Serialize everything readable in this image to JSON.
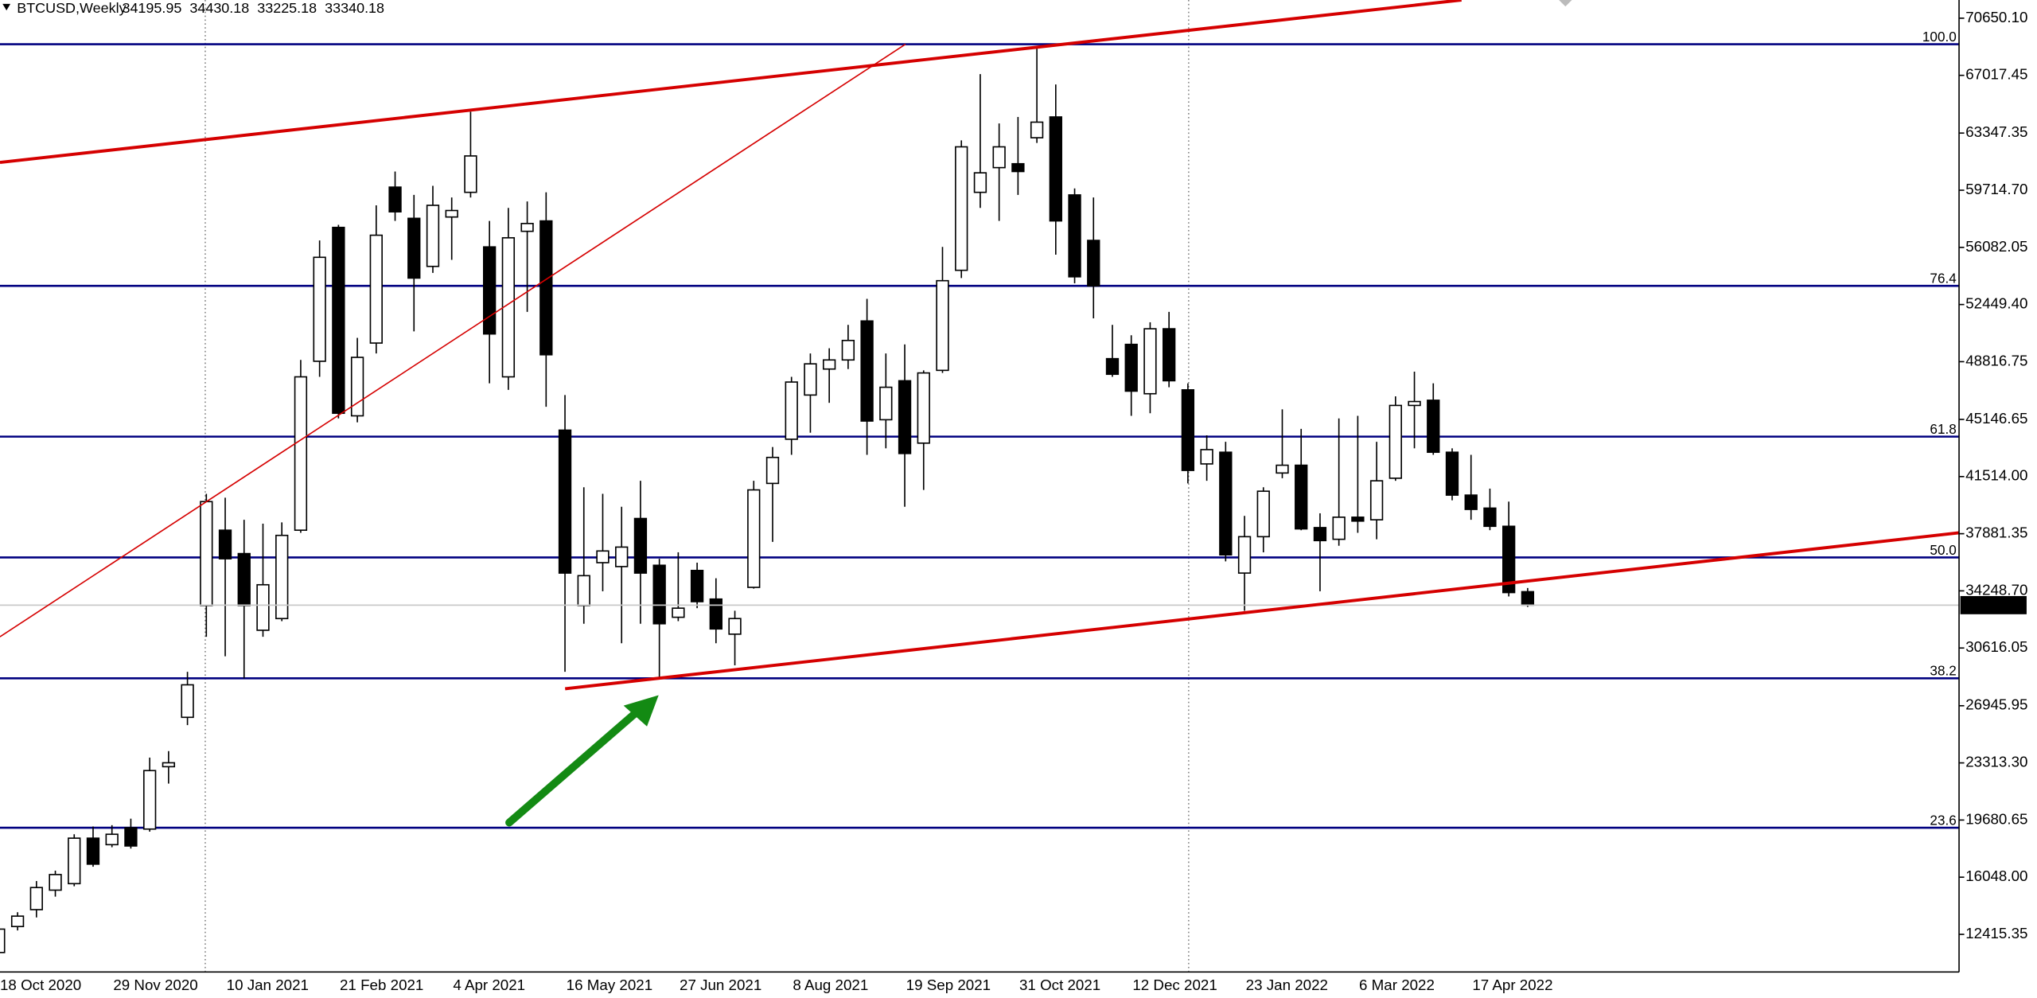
{
  "chart_data": {
    "type": "candlestick",
    "title": "BTCUSD,Weekly",
    "categories": [
      "18 Oct 2020",
      null,
      null,
      null,
      null,
      null,
      "29 Nov 2020",
      null,
      null,
      null,
      null,
      null,
      "10 Jan 2021",
      null,
      null,
      null,
      null,
      null,
      "21 Feb 2021",
      null,
      null,
      null,
      null,
      null,
      "4 Apr 2021",
      null,
      null,
      null,
      null,
      null,
      "16 May 2021",
      null,
      null,
      null,
      null,
      null,
      "27 Jun 2021",
      null,
      null,
      null,
      null,
      null,
      "8 Aug 2021",
      null,
      null,
      null,
      null,
      null,
      "19 Sep 2021",
      null,
      null,
      null,
      null,
      null,
      "31 Oct 2021",
      null,
      null,
      null,
      null,
      null,
      "12 Dec 2021",
      null,
      null,
      null,
      null,
      null,
      "23 Jan 2022",
      null,
      null,
      null,
      null,
      null,
      "6 Mar 2022",
      null,
      null,
      null,
      null,
      null,
      "17 Apr 2022",
      null,
      null,
      null
    ],
    "open": [
      11260,
      12912,
      13986,
      15225,
      15638,
      18529,
      18116,
      19190,
      19107,
      23072,
      26211,
      33314,
      38105,
      36618,
      31745,
      32488,
      38105,
      48843,
      57351,
      45374,
      50000,
      59912,
      57929,
      54873,
      58012,
      59581,
      56112,
      47852,
      57103,
      57764,
      44465,
      33314,
      36040,
      35792,
      38849,
      35875,
      32571,
      35545,
      33727,
      31497,
      34471,
      41079,
      43887,
      46696,
      48348,
      48926,
      51404,
      45126,
      47604,
      43639,
      48265,
      54625,
      59581,
      61151,
      61398,
      63050,
      64372,
      59416,
      56525,
      49008,
      49917,
      46778,
      50908,
      47026,
      42318,
      43061,
      35379,
      37692,
      41740,
      42235,
      38270,
      37527,
      38931,
      38766,
      41409,
      46035,
      46365,
      43061,
      40335,
      39509,
      38353,
      34195.95
    ],
    "high": [
      12995,
      13821,
      15803,
      16464,
      18777,
      19272,
      19355,
      19768,
      23650,
      24063,
      29102,
      40418,
      40170,
      38766,
      38518,
      38601,
      48926,
      56525,
      57516,
      50330,
      58755,
      60903,
      59416,
      59994,
      59251,
      64702,
      57764,
      58590,
      59003,
      59581,
      46696,
      40831,
      40418,
      39592,
      41244,
      36288,
      36701,
      36040,
      35049,
      32984,
      41244,
      43392,
      47852,
      49339,
      49669,
      51156,
      52808,
      49339,
      49917,
      48265,
      56112,
      62885,
      67098,
      63959,
      64372,
      68832,
      66437,
      59829,
      59251,
      51156,
      50495,
      51321,
      51982,
      47439,
      44135,
      43722,
      39014,
      40831,
      45787,
      44548,
      39179,
      45209,
      45374,
      43722,
      46613,
      48182,
      47439,
      43309,
      42896,
      40748,
      39922,
      34430.18
    ],
    "low": [
      11095,
      12664,
      13490,
      14812,
      15473,
      16712,
      17951,
      17868,
      18942,
      21998,
      25715,
      31332,
      30093,
      28689,
      31332,
      32323,
      37940,
      47852,
      45209,
      44961,
      49339,
      57764,
      50743,
      54460,
      55286,
      59251,
      47439,
      47026,
      51982,
      45952,
      29102,
      32158,
      34223,
      30919,
      32158,
      28771,
      32323,
      33149,
      30919,
      29515,
      34388,
      37362,
      42896,
      44300,
      46200,
      48348,
      42896,
      43309,
      39592,
      40666,
      48100,
      54130,
      58590,
      57764,
      59416,
      62720,
      55616,
      53799,
      51569,
      47852,
      45374,
      45539,
      47191,
      41079,
      41244,
      36123,
      32984,
      36701,
      41409,
      38105,
      34223,
      37114,
      37940,
      37527,
      41244,
      43309,
      42896,
      40005,
      38766,
      38105,
      33893,
      33225.18
    ],
    "close": [
      12747,
      13573,
      15390,
      16216,
      18529,
      16877,
      18777,
      18033,
      22824,
      23320,
      28276,
      39922,
      36288,
      33314,
      34636,
      37775,
      47852,
      55451,
      45539,
      49091,
      56855,
      58342,
      54130,
      58755,
      58425,
      61894,
      50578,
      56690,
      57599,
      49256,
      35379,
      35214,
      36784,
      37031,
      35379,
      32158,
      33149,
      33562,
      31828,
      32488,
      40666,
      42731,
      47522,
      48678,
      48926,
      50165,
      45044,
      47191,
      42979,
      48100,
      53964,
      62472,
      60820,
      62472,
      60903,
      64042,
      57764,
      54212,
      53634,
      48017,
      46943,
      50908,
      47604,
      41905,
      43226,
      36536,
      37692,
      40583,
      42235,
      38188,
      37444,
      38931,
      38683,
      41244,
      46035,
      46283,
      43061,
      40335,
      39427,
      38353,
      34140,
      33340.18
    ],
    "ylim": [
      10021,
      71806
    ],
    "yticks": [
      {
        "value": 70650.1,
        "label": "70650.10"
      },
      67017.45,
      63347.35,
      {
        "value": 59714.7,
        "label": "59714.70"
      },
      56082.05,
      {
        "value": 52449.4,
        "label": "52449.40"
      },
      48816.75,
      45146.65,
      {
        "value": 41514,
        "label": "41514.00"
      },
      37881.35,
      {
        "value": 34248.7,
        "label": "34248.70"
      },
      30616.05,
      26945.95,
      {
        "value": 23313.3,
        "label": "23313.30"
      },
      19680.65,
      {
        "value": 16048,
        "label": "16048.00"
      },
      12415.35
    ],
    "fib_levels": [
      {
        "label": "100.0",
        "value": 68998
      },
      {
        "label": "76.4",
        "value": 53634
      },
      {
        "label": "61.8",
        "value": 44052
      },
      {
        "label": "50.0",
        "value": 36370
      },
      {
        "label": "38.2",
        "value": 28688
      },
      {
        "label": "23.6",
        "value": 19189
      }
    ],
    "fib_color": "#000080",
    "up_color": "#ffffff",
    "down_color": "#000000"
  }
}
